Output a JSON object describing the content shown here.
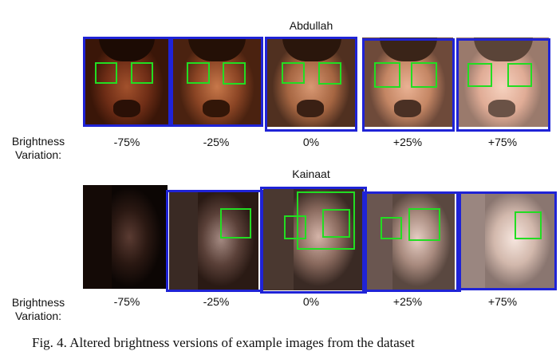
{
  "subjects": [
    {
      "name": "Abdullah",
      "row_label": "Brightness Variation:",
      "levels": [
        "-75%",
        "-25%",
        "0%",
        "+25%",
        "+75%"
      ]
    },
    {
      "name": "Kainaat",
      "row_label": "Brightness Variation:",
      "levels": [
        "-75%",
        "-25%",
        "0%",
        "+25%",
        "+75%"
      ]
    }
  ],
  "caption": "Fig. 4.  Altered brightness versions of example images from the dataset",
  "colors": {
    "face_box": "#1f23d6",
    "eye_box": "#22dd22"
  }
}
